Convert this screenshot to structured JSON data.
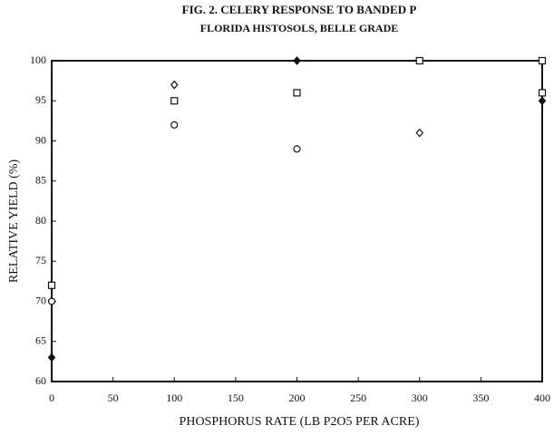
{
  "chart_data": {
    "type": "scatter",
    "title": "FIG. 2. CELERY RESPONSE TO BANDED P",
    "subtitle": "FLORIDA HISTOSOLS, BELLE GRADE",
    "x_label": "PHOSPHORUS RATE (LB P2O5 PER ACRE)",
    "y_label": "RELATIVE YIELD (%)",
    "xlim": [
      0,
      400
    ],
    "xticks": [
      0,
      50,
      100,
      150,
      200,
      250,
      300,
      350,
      400
    ],
    "ylim": [
      60,
      100
    ],
    "yticks": [
      60,
      65,
      70,
      75,
      80,
      85,
      90,
      95,
      100
    ],
    "grid": false,
    "series": [
      {
        "color": "#111111",
        "marker": "diamond",
        "filled": true,
        "x": [
          0,
          200,
          400
        ],
        "values": [
          63,
          100,
          95
        ]
      },
      {
        "color": "#111111",
        "marker": "square",
        "filled": false,
        "x": [
          0,
          100,
          200,
          300,
          400,
          400
        ],
        "values": [
          72,
          95,
          96,
          100,
          100,
          96
        ]
      },
      {
        "color": "#111111",
        "marker": "circle",
        "filled": false,
        "x": [
          0,
          100,
          200
        ],
        "values": [
          70,
          92,
          89
        ]
      },
      {
        "color": "#111111",
        "marker": "diamond",
        "filled": false,
        "x": [
          100,
          300
        ],
        "values": [
          97,
          91
        ]
      }
    ]
  }
}
